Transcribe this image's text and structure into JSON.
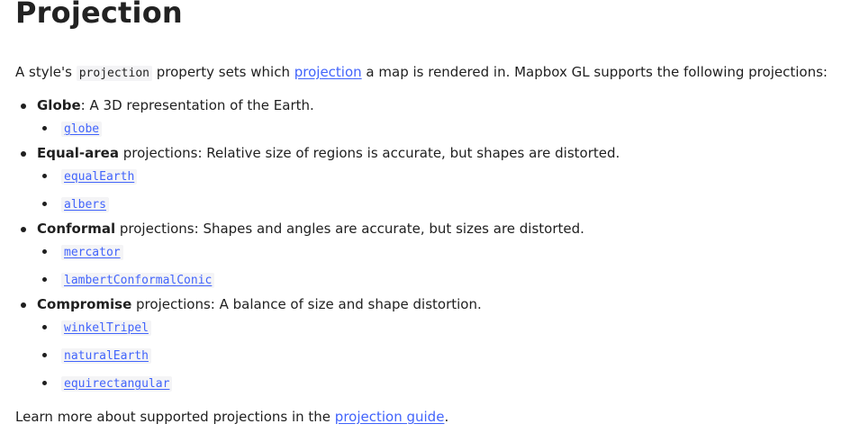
{
  "title": "Projection",
  "intro": {
    "text_before": "A style's ",
    "code": "projection",
    "text_middle": " property sets which ",
    "link": "projection",
    "text_after": " a map is rendered in. Mapbox GL supports the following projections:"
  },
  "groups": [
    {
      "name": "Globe",
      "description": ": A 3D representation of the Earth.",
      "items": [
        "globe"
      ]
    },
    {
      "name": "Equal-area",
      "description": " projections: Relative size of regions is accurate, but shapes are distorted.",
      "items": [
        "equalEarth",
        "albers"
      ]
    },
    {
      "name": "Conformal",
      "description": " projections: Shapes and angles are accurate, but sizes are distorted.",
      "items": [
        "mercator",
        "lambertConformalConic"
      ]
    },
    {
      "name": "Compromise",
      "description": " projections: A balance of size and shape distortion.",
      "items": [
        "winkelTripel",
        "naturalEarth",
        "equirectangular"
      ]
    }
  ],
  "outro": {
    "text_before": "Learn more about supported projections in the ",
    "link": "projection guide",
    "text_after": "."
  },
  "colors": {
    "link": "#4264fb",
    "code_background": "#f4f4f6",
    "text": "#1f1f1f"
  }
}
